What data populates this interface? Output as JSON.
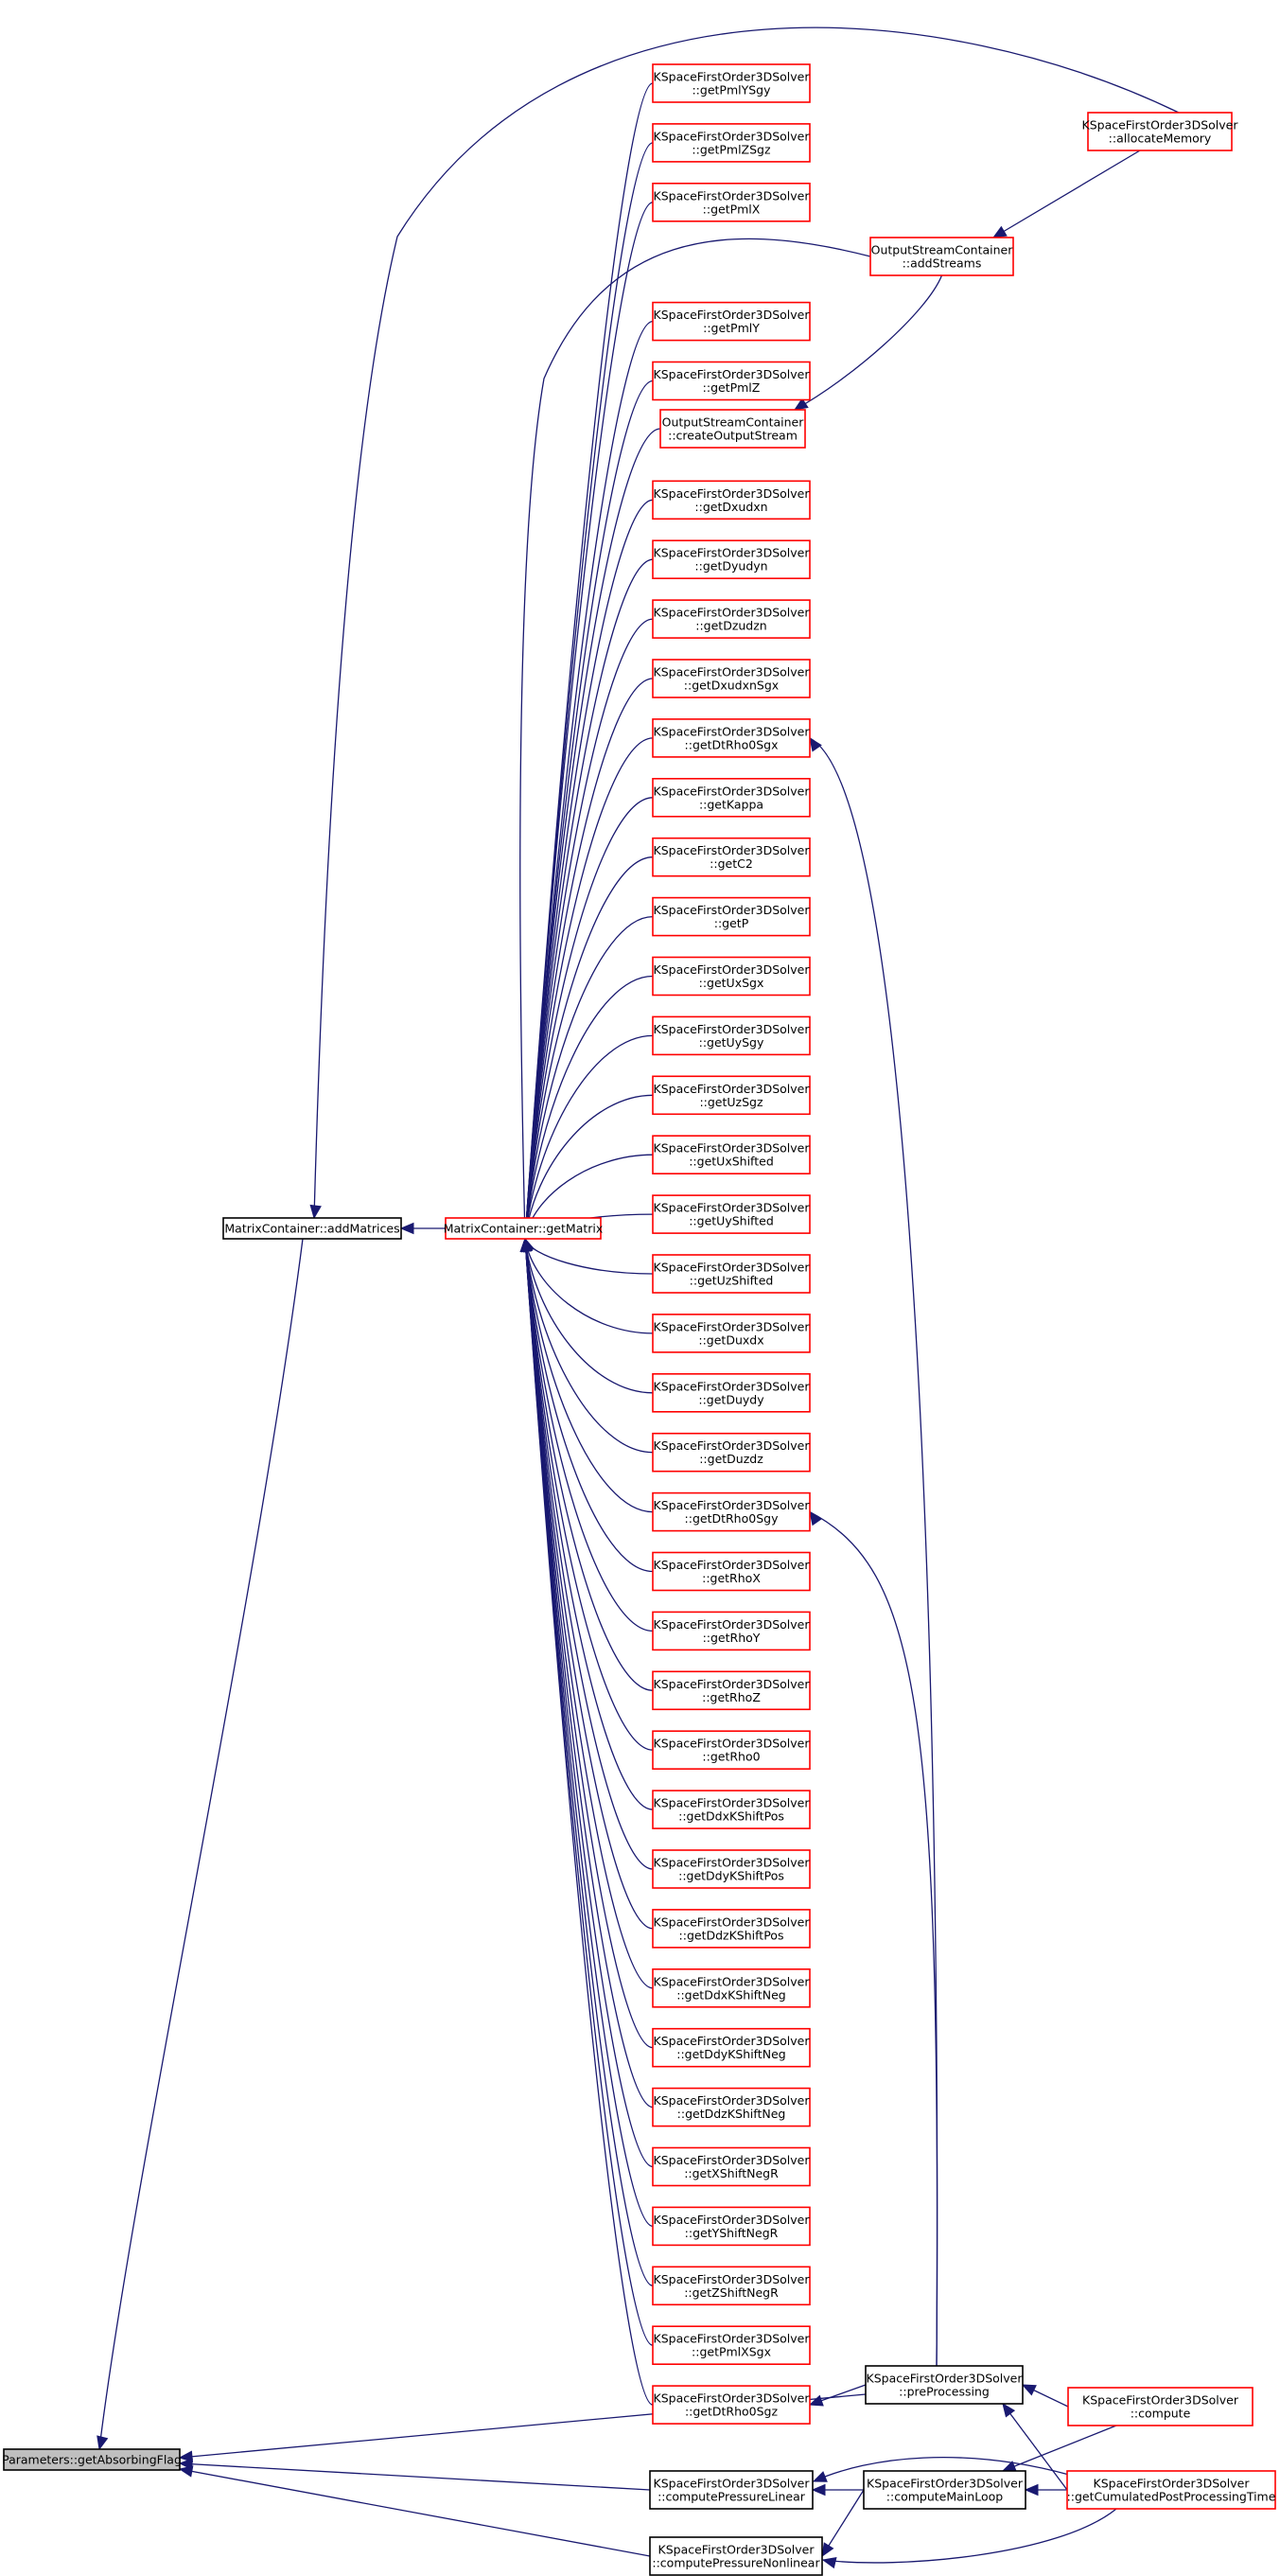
{
  "nodes": [
    {
      "id": "getAbsorbingFlag",
      "lines": [
        "Parameters::getAbsorbingFlag"
      ],
      "border": "gray"
    },
    {
      "id": "addMatrices",
      "lines": [
        "MatrixContainer::addMatrices"
      ],
      "border": "black"
    },
    {
      "id": "getMatrix",
      "lines": [
        "MatrixContainer::getMatrix"
      ],
      "border": "red"
    },
    {
      "id": "getPmlYSgy",
      "lines": [
        "KSpaceFirstOrder3DSolver",
        "::getPmlYSgy"
      ],
      "border": "red"
    },
    {
      "id": "getPmlZSgz",
      "lines": [
        "KSpaceFirstOrder3DSolver",
        "::getPmlZSgz"
      ],
      "border": "red"
    },
    {
      "id": "getPmlX",
      "lines": [
        "KSpaceFirstOrder3DSolver",
        "::getPmlX"
      ],
      "border": "red"
    },
    {
      "id": "getPmlY",
      "lines": [
        "KSpaceFirstOrder3DSolver",
        "::getPmlY"
      ],
      "border": "red"
    },
    {
      "id": "getPmlZ",
      "lines": [
        "KSpaceFirstOrder3DSolver",
        "::getPmlZ"
      ],
      "border": "red"
    },
    {
      "id": "createOutputStream",
      "lines": [
        "OutputStreamContainer",
        "::createOutputStream"
      ],
      "border": "red"
    },
    {
      "id": "getDxudxn",
      "lines": [
        "KSpaceFirstOrder3DSolver",
        "::getDxudxn"
      ],
      "border": "red"
    },
    {
      "id": "getDyudyn",
      "lines": [
        "KSpaceFirstOrder3DSolver",
        "::getDyudyn"
      ],
      "border": "red"
    },
    {
      "id": "getDzudzn",
      "lines": [
        "KSpaceFirstOrder3DSolver",
        "::getDzudzn"
      ],
      "border": "red"
    },
    {
      "id": "getDxudxnSgx",
      "lines": [
        "KSpaceFirstOrder3DSolver",
        "::getDxudxnSgx"
      ],
      "border": "red"
    },
    {
      "id": "getDtRho0Sgx",
      "lines": [
        "KSpaceFirstOrder3DSolver",
        "::getDtRho0Sgx"
      ],
      "border": "red"
    },
    {
      "id": "getKappa",
      "lines": [
        "KSpaceFirstOrder3DSolver",
        "::getKappa"
      ],
      "border": "red"
    },
    {
      "id": "getC2",
      "lines": [
        "KSpaceFirstOrder3DSolver",
        "::getC2"
      ],
      "border": "red"
    },
    {
      "id": "getP",
      "lines": [
        "KSpaceFirstOrder3DSolver",
        "::getP"
      ],
      "border": "red"
    },
    {
      "id": "getUxSgx",
      "lines": [
        "KSpaceFirstOrder3DSolver",
        "::getUxSgx"
      ],
      "border": "red"
    },
    {
      "id": "getUySgy",
      "lines": [
        "KSpaceFirstOrder3DSolver",
        "::getUySgy"
      ],
      "border": "red"
    },
    {
      "id": "getUzSgz",
      "lines": [
        "KSpaceFirstOrder3DSolver",
        "::getUzSgz"
      ],
      "border": "red"
    },
    {
      "id": "getUxShifted",
      "lines": [
        "KSpaceFirstOrder3DSolver",
        "::getUxShifted"
      ],
      "border": "red"
    },
    {
      "id": "getUyShifted",
      "lines": [
        "KSpaceFirstOrder3DSolver",
        "::getUyShifted"
      ],
      "border": "red"
    },
    {
      "id": "getUzShifted",
      "lines": [
        "KSpaceFirstOrder3DSolver",
        "::getUzShifted"
      ],
      "border": "red"
    },
    {
      "id": "getDuxdx",
      "lines": [
        "KSpaceFirstOrder3DSolver",
        "::getDuxdx"
      ],
      "border": "red"
    },
    {
      "id": "getDuydy",
      "lines": [
        "KSpaceFirstOrder3DSolver",
        "::getDuydy"
      ],
      "border": "red"
    },
    {
      "id": "getDuzdz",
      "lines": [
        "KSpaceFirstOrder3DSolver",
        "::getDuzdz"
      ],
      "border": "red"
    },
    {
      "id": "getDtRho0Sgy",
      "lines": [
        "KSpaceFirstOrder3DSolver",
        "::getDtRho0Sgy"
      ],
      "border": "red"
    },
    {
      "id": "getRhoX",
      "lines": [
        "KSpaceFirstOrder3DSolver",
        "::getRhoX"
      ],
      "border": "red"
    },
    {
      "id": "getRhoY",
      "lines": [
        "KSpaceFirstOrder3DSolver",
        "::getRhoY"
      ],
      "border": "red"
    },
    {
      "id": "getRhoZ",
      "lines": [
        "KSpaceFirstOrder3DSolver",
        "::getRhoZ"
      ],
      "border": "red"
    },
    {
      "id": "getRho0",
      "lines": [
        "KSpaceFirstOrder3DSolver",
        "::getRho0"
      ],
      "border": "red"
    },
    {
      "id": "getDdxKShiftPos",
      "lines": [
        "KSpaceFirstOrder3DSolver",
        "::getDdxKShiftPos"
      ],
      "border": "red"
    },
    {
      "id": "getDdyKShiftPos",
      "lines": [
        "KSpaceFirstOrder3DSolver",
        "::getDdyKShiftPos"
      ],
      "border": "red"
    },
    {
      "id": "getDdzKShiftPos",
      "lines": [
        "KSpaceFirstOrder3DSolver",
        "::getDdzKShiftPos"
      ],
      "border": "red"
    },
    {
      "id": "getDdxKShiftNeg",
      "lines": [
        "KSpaceFirstOrder3DSolver",
        "::getDdxKShiftNeg"
      ],
      "border": "red"
    },
    {
      "id": "getDdyKShiftNeg",
      "lines": [
        "KSpaceFirstOrder3DSolver",
        "::getDdyKShiftNeg"
      ],
      "border": "red"
    },
    {
      "id": "getDdzKShiftNeg",
      "lines": [
        "KSpaceFirstOrder3DSolver",
        "::getDdzKShiftNeg"
      ],
      "border": "red"
    },
    {
      "id": "getXShiftNegR",
      "lines": [
        "KSpaceFirstOrder3DSolver",
        "::getXShiftNegR"
      ],
      "border": "red"
    },
    {
      "id": "getYShiftNegR",
      "lines": [
        "KSpaceFirstOrder3DSolver",
        "::getYShiftNegR"
      ],
      "border": "red"
    },
    {
      "id": "getZShiftNegR",
      "lines": [
        "KSpaceFirstOrder3DSolver",
        "::getZShiftNegR"
      ],
      "border": "red"
    },
    {
      "id": "getPmlXSgx",
      "lines": [
        "KSpaceFirstOrder3DSolver",
        "::getPmlXSgx"
      ],
      "border": "red"
    },
    {
      "id": "getDtRho0Sgz",
      "lines": [
        "KSpaceFirstOrder3DSolver",
        "::getDtRho0Sgz"
      ],
      "border": "red"
    },
    {
      "id": "addStreams",
      "lines": [
        "OutputStreamContainer",
        "::addStreams"
      ],
      "border": "red"
    },
    {
      "id": "allocateMemory",
      "lines": [
        "KSpaceFirstOrder3DSolver",
        "::allocateMemory"
      ],
      "border": "red"
    },
    {
      "id": "preProcessing",
      "lines": [
        "KSpaceFirstOrder3DSolver",
        "::preProcessing"
      ],
      "border": "black"
    },
    {
      "id": "computePressureLinear",
      "lines": [
        "KSpaceFirstOrder3DSolver",
        "::computePressureLinear"
      ],
      "border": "black"
    },
    {
      "id": "computePressureNonlinear",
      "lines": [
        "KSpaceFirstOrder3DSolver",
        "::computePressureNonlinear"
      ],
      "border": "black"
    },
    {
      "id": "computeMainLoop",
      "lines": [
        "KSpaceFirstOrder3DSolver",
        "::computeMainLoop"
      ],
      "border": "black"
    },
    {
      "id": "compute",
      "lines": [
        "KSpaceFirstOrder3DSolver",
        "::compute"
      ],
      "border": "red"
    },
    {
      "id": "getCumulatedPostProcessingTime",
      "lines": [
        "KSpaceFirstOrder3DSolver",
        "::getCumulatedPostProcessingTime"
      ],
      "border": "red"
    }
  ],
  "edges": [
    {
      "from": "addMatrices",
      "to": "getAbsorbingFlag"
    },
    {
      "from": "getMatrix",
      "to": "addMatrices"
    },
    {
      "from": "allocateMemory",
      "to": "addMatrices"
    },
    {
      "from": "getPmlYSgy",
      "to": "getMatrix"
    },
    {
      "from": "getPmlZSgz",
      "to": "getMatrix"
    },
    {
      "from": "getPmlX",
      "to": "getMatrix"
    },
    {
      "from": "addStreams",
      "to": "getMatrix"
    },
    {
      "from": "getPmlY",
      "to": "getMatrix"
    },
    {
      "from": "getPmlZ",
      "to": "getMatrix"
    },
    {
      "from": "createOutputStream",
      "to": "getMatrix"
    },
    {
      "from": "getDxudxn",
      "to": "getMatrix"
    },
    {
      "from": "getDyudyn",
      "to": "getMatrix"
    },
    {
      "from": "getDzudzn",
      "to": "getMatrix"
    },
    {
      "from": "getDxudxnSgx",
      "to": "getMatrix"
    },
    {
      "from": "getDtRho0Sgx",
      "to": "getMatrix"
    },
    {
      "from": "getKappa",
      "to": "getMatrix"
    },
    {
      "from": "getC2",
      "to": "getMatrix"
    },
    {
      "from": "getP",
      "to": "getMatrix"
    },
    {
      "from": "getUxSgx",
      "to": "getMatrix"
    },
    {
      "from": "getUySgy",
      "to": "getMatrix"
    },
    {
      "from": "getUzSgz",
      "to": "getMatrix"
    },
    {
      "from": "getUxShifted",
      "to": "getMatrix"
    },
    {
      "from": "getUyShifted",
      "to": "getMatrix"
    },
    {
      "from": "getUzShifted",
      "to": "getMatrix"
    },
    {
      "from": "getDuxdx",
      "to": "getMatrix"
    },
    {
      "from": "getDuydy",
      "to": "getMatrix"
    },
    {
      "from": "getDuzdz",
      "to": "getMatrix"
    },
    {
      "from": "getDtRho0Sgy",
      "to": "getMatrix"
    },
    {
      "from": "getRhoX",
      "to": "getMatrix"
    },
    {
      "from": "getRhoY",
      "to": "getMatrix"
    },
    {
      "from": "getRhoZ",
      "to": "getMatrix"
    },
    {
      "from": "getRho0",
      "to": "getMatrix"
    },
    {
      "from": "getDdxKShiftPos",
      "to": "getMatrix"
    },
    {
      "from": "getDdyKShiftPos",
      "to": "getMatrix"
    },
    {
      "from": "getDdzKShiftPos",
      "to": "getMatrix"
    },
    {
      "from": "getDdxKShiftNeg",
      "to": "getMatrix"
    },
    {
      "from": "getDdyKShiftNeg",
      "to": "getMatrix"
    },
    {
      "from": "getDdzKShiftNeg",
      "to": "getMatrix"
    },
    {
      "from": "getXShiftNegR",
      "to": "getMatrix"
    },
    {
      "from": "getYShiftNegR",
      "to": "getMatrix"
    },
    {
      "from": "getZShiftNegR",
      "to": "getMatrix"
    },
    {
      "from": "getPmlXSgx",
      "to": "getMatrix"
    },
    {
      "from": "getDtRho0Sgz",
      "to": "getMatrix"
    },
    {
      "from": "addStreams",
      "to": "createOutputStream"
    },
    {
      "from": "allocateMemory",
      "to": "addStreams"
    },
    {
      "from": "preProcessing",
      "to": "getDtRho0Sgx"
    },
    {
      "from": "preProcessing",
      "to": "getDtRho0Sgy"
    },
    {
      "from": "preProcessing",
      "to": "getDtRho0Sgz"
    },
    {
      "from": "preProcessing",
      "to": "getAbsorbingFlag"
    },
    {
      "from": "computePressureLinear",
      "to": "getAbsorbingFlag"
    },
    {
      "from": "computePressureNonlinear",
      "to": "getAbsorbingFlag"
    },
    {
      "from": "compute",
      "to": "preProcessing"
    },
    {
      "from": "getCumulatedPostProcessingTime",
      "to": "preProcessing"
    },
    {
      "from": "computeMainLoop",
      "to": "computePressureLinear"
    },
    {
      "from": "computeMainLoop",
      "to": "computePressureNonlinear"
    },
    {
      "from": "getCumulatedPostProcessingTime",
      "to": "computePressureLinear"
    },
    {
      "from": "getCumulatedPostProcessingTime",
      "to": "computePressureNonlinear"
    },
    {
      "from": "compute",
      "to": "computeMainLoop"
    },
    {
      "from": "getCumulatedPostProcessingTime",
      "to": "computeMainLoop"
    }
  ]
}
